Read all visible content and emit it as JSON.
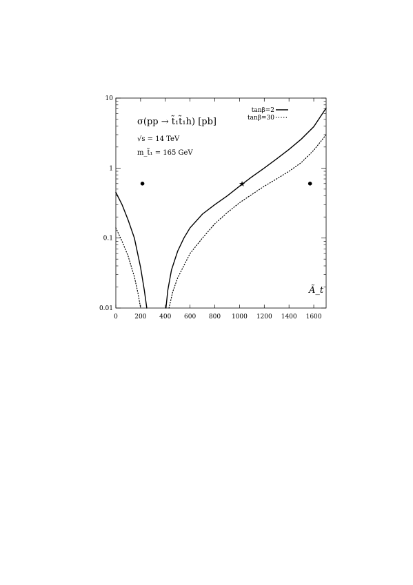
{
  "chart_data": {
    "type": "line",
    "xlabel": "Ã_t",
    "ylabel": "",
    "title": "σ(pp → t̃₁t̃₁h) [pb]",
    "annotations": [
      {
        "id": "sqrt-s",
        "text": "√s = 14 TeV"
      },
      {
        "id": "mass",
        "text": "m_t̃₁ = 165 GeV"
      }
    ],
    "xlim": [
      0,
      1700
    ],
    "ylim": [
      0.01,
      10
    ],
    "yscale": "log",
    "grid": false,
    "legend_position": "top-right",
    "xticks": [
      0,
      200,
      400,
      600,
      800,
      1000,
      1200,
      1400,
      1600
    ],
    "yticks": [
      0.01,
      0.1,
      1,
      10
    ],
    "ytick_labels": [
      "0.01",
      "0.1",
      "1",
      "10"
    ],
    "series": [
      {
        "name": "tanβ=2",
        "style": "solid",
        "color": "#000000",
        "segments": [
          [
            [
              0,
              0.45
            ],
            [
              50,
              0.3
            ],
            [
              100,
              0.18
            ],
            [
              150,
              0.1
            ],
            [
              200,
              0.038
            ],
            [
              230,
              0.018
            ],
            [
              250,
              0.01
            ]
          ],
          [
            [
              405,
              0.01
            ],
            [
              420,
              0.018
            ],
            [
              450,
              0.035
            ],
            [
              500,
              0.065
            ],
            [
              550,
              0.1
            ],
            [
              600,
              0.14
            ],
            [
              700,
              0.22
            ],
            [
              800,
              0.3
            ],
            [
              900,
              0.4
            ],
            [
              1000,
              0.55
            ],
            [
              1100,
              0.75
            ],
            [
              1200,
              1.0
            ],
            [
              1300,
              1.35
            ],
            [
              1400,
              1.85
            ],
            [
              1500,
              2.6
            ],
            [
              1600,
              3.9
            ],
            [
              1700,
              7.2
            ]
          ]
        ]
      },
      {
        "name": "tanβ=30",
        "style": "dotted",
        "color": "#000000",
        "segments": [
          [
            [
              0,
              0.14
            ],
            [
              50,
              0.09
            ],
            [
              100,
              0.055
            ],
            [
              150,
              0.028
            ],
            [
              180,
              0.016
            ],
            [
              200,
              0.01
            ]
          ],
          [
            [
              430,
              0.01
            ],
            [
              460,
              0.017
            ],
            [
              500,
              0.027
            ],
            [
              600,
              0.06
            ],
            [
              700,
              0.1
            ],
            [
              800,
              0.16
            ],
            [
              900,
              0.23
            ],
            [
              1000,
              0.32
            ],
            [
              1100,
              0.42
            ],
            [
              1200,
              0.55
            ],
            [
              1300,
              0.7
            ],
            [
              1400,
              0.9
            ],
            [
              1500,
              1.2
            ],
            [
              1600,
              1.8
            ],
            [
              1700,
              3.0
            ]
          ]
        ]
      }
    ],
    "markers": [
      {
        "shape": "dot",
        "x": 215,
        "y": 0.6
      },
      {
        "shape": "dot",
        "x": 1570,
        "y": 0.6
      },
      {
        "shape": "star",
        "x": 1020,
        "y": 0.6
      }
    ]
  }
}
